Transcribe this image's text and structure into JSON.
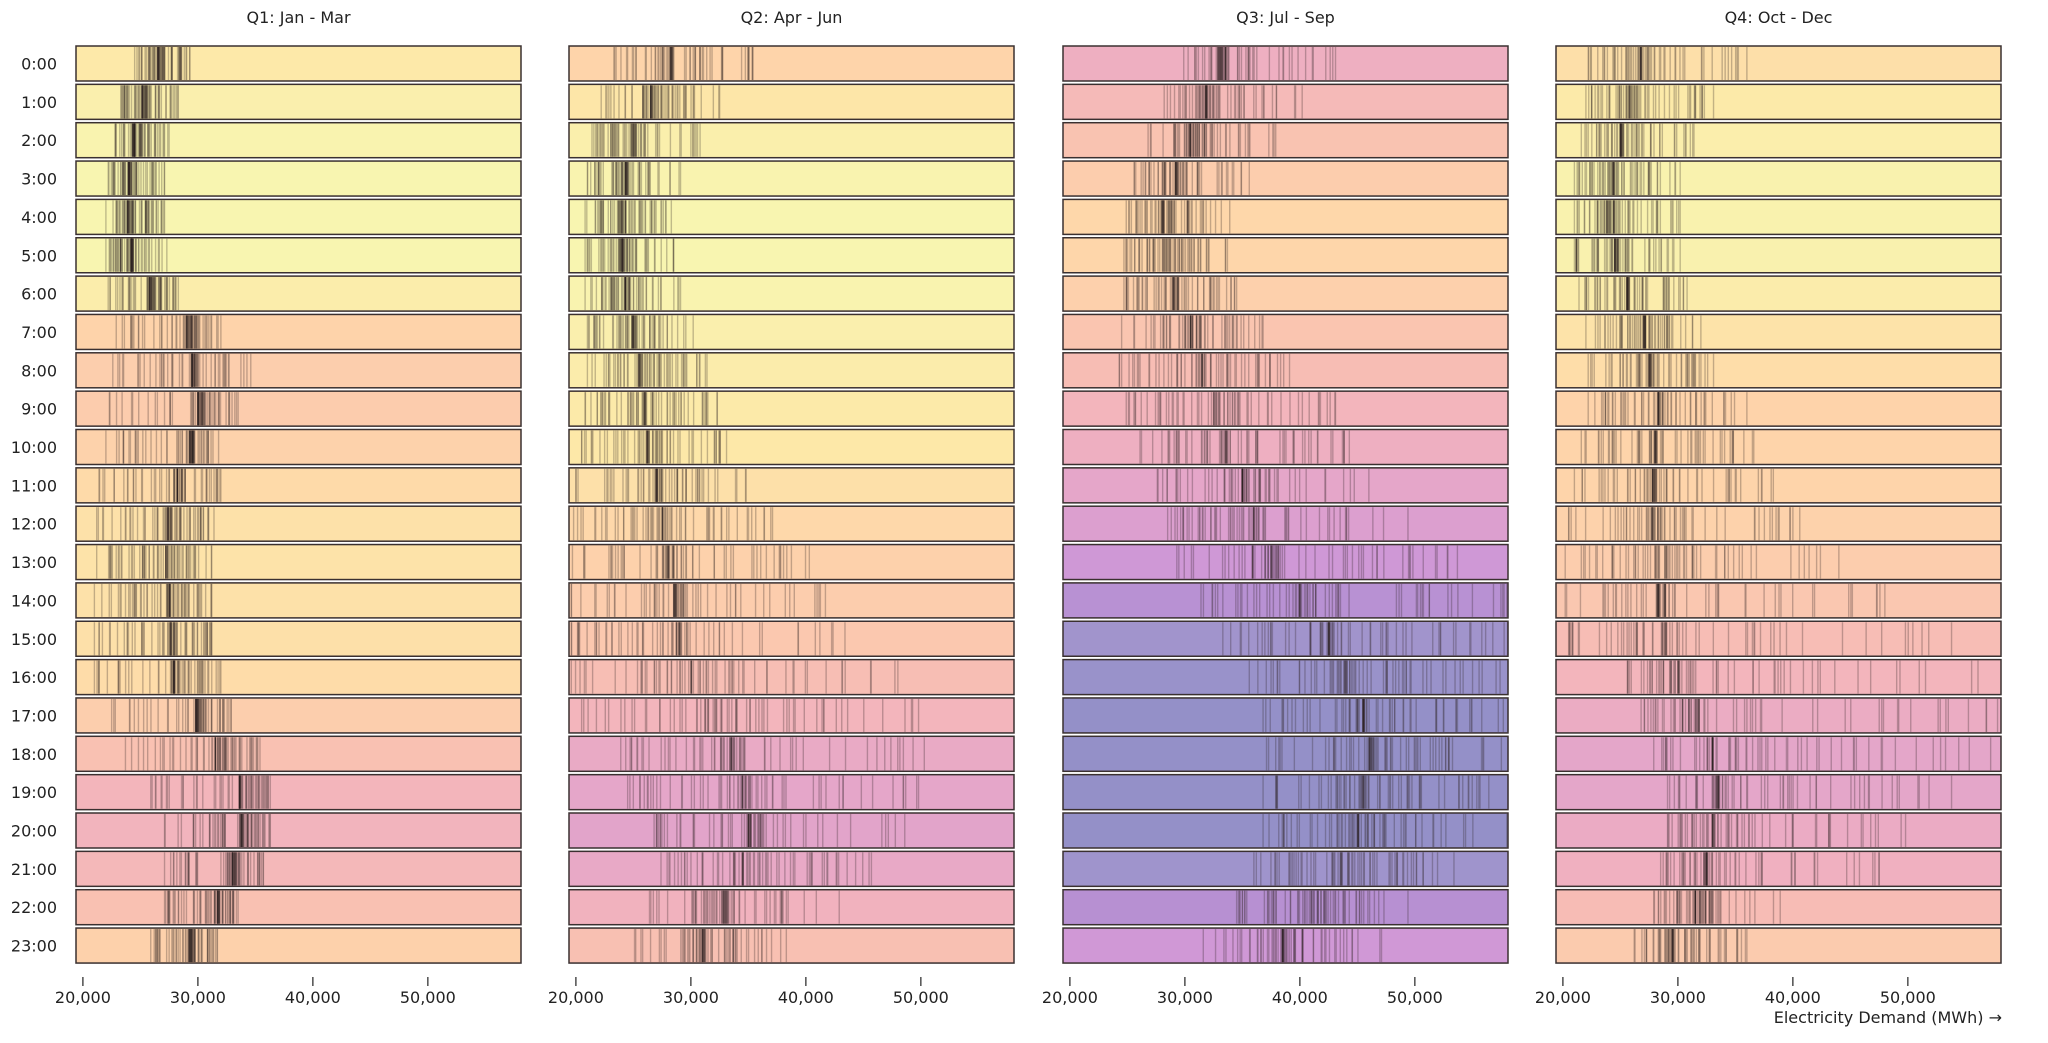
{
  "chart_data": {
    "type": "barcode-facets",
    "facets": [
      "Q1: Jan - Mar",
      "Q2: Apr - Jun",
      "Q3: Jul - Sep",
      "Q4: Oct - Dec"
    ],
    "rows": [
      "0:00",
      "1:00",
      "2:00",
      "3:00",
      "4:00",
      "5:00",
      "6:00",
      "7:00",
      "8:00",
      "9:00",
      "10:00",
      "11:00",
      "12:00",
      "13:00",
      "14:00",
      "15:00",
      "16:00",
      "17:00",
      "18:00",
      "19:00",
      "20:00",
      "21:00",
      "22:00",
      "23:00"
    ],
    "xlabel": "Electricity Demand (MWh) →",
    "xlim": [
      19400,
      58100
    ],
    "xticks": [
      20000,
      30000,
      40000,
      50000
    ],
    "xtick_labels": [
      "20,000",
      "30,000",
      "40,000",
      "50,000"
    ],
    "cell_value_fields": [
      "min",
      "typical",
      "max"
    ],
    "color_scale": [
      [
        24500,
        "#f8f5b0"
      ],
      [
        27000,
        "#fde8a8"
      ],
      [
        29000,
        "#fed4aa"
      ],
      [
        32000,
        "#f8bfb3"
      ],
      [
        34500,
        "#f0b0c0"
      ],
      [
        37000,
        "#e0a2cc"
      ],
      [
        40000,
        "#cc96d8"
      ],
      [
        42500,
        "#b690d2"
      ],
      [
        44500,
        "#a094cc"
      ],
      [
        46500,
        "#9490c8"
      ]
    ],
    "cells": [
      [
        [
          24500,
          26500,
          29300
        ],
        [
          23300,
          25200,
          28300
        ],
        [
          22800,
          24500,
          27500
        ],
        [
          22200,
          24000,
          27100
        ],
        [
          22000,
          23900,
          27100
        ],
        [
          22000,
          24200,
          27300
        ],
        [
          22200,
          25800,
          28300
        ],
        [
          22900,
          29000,
          32000
        ],
        [
          22600,
          29500,
          34600
        ],
        [
          22300,
          30000,
          33500
        ],
        [
          22000,
          29300,
          31800
        ],
        [
          21400,
          28200,
          32000
        ],
        [
          21200,
          27400,
          31400
        ],
        [
          21200,
          27200,
          31200
        ],
        [
          21000,
          27500,
          31200
        ],
        [
          21000,
          27600,
          31200
        ],
        [
          21000,
          27900,
          32000
        ],
        [
          22500,
          29800,
          32900
        ],
        [
          23700,
          31500,
          35400
        ],
        [
          25900,
          33600,
          36300
        ],
        [
          27100,
          33800,
          36300
        ],
        [
          27100,
          33000,
          35700
        ],
        [
          27100,
          31700,
          33500
        ],
        [
          25900,
          29300,
          31700
        ]
      ],
      [
        [
          23300,
          28200,
          35400
        ],
        [
          22200,
          26500,
          32500
        ],
        [
          21400,
          25000,
          30800
        ],
        [
          21000,
          24300,
          29100
        ],
        [
          20800,
          24000,
          28300
        ],
        [
          20800,
          24000,
          28500
        ],
        [
          20800,
          24300,
          29100
        ],
        [
          21000,
          25000,
          30200
        ],
        [
          21000,
          25500,
          31400
        ],
        [
          20800,
          26000,
          32300
        ],
        [
          20500,
          26200,
          33100
        ],
        [
          20000,
          27000,
          34800
        ],
        [
          19800,
          27500,
          37100
        ],
        [
          19700,
          28000,
          40300
        ],
        [
          19600,
          28500,
          41700
        ],
        [
          19600,
          29000,
          43400
        ],
        [
          19600,
          30000,
          48000
        ],
        [
          20500,
          31500,
          49800
        ],
        [
          23900,
          33500,
          50300
        ],
        [
          24500,
          34500,
          49800
        ],
        [
          26800,
          35000,
          48600
        ],
        [
          27400,
          34500,
          45700
        ],
        [
          26400,
          33000,
          42900
        ],
        [
          25100,
          31000,
          38300
        ]
      ],
      [
        [
          29900,
          33500,
          43100
        ],
        [
          28200,
          31800,
          40200
        ],
        [
          26800,
          30500,
          37900
        ],
        [
          25600,
          29200,
          35600
        ],
        [
          24900,
          28000,
          33900
        ],
        [
          24700,
          28200,
          33700
        ],
        [
          24700,
          29000,
          34500
        ],
        [
          24500,
          30500,
          36800
        ],
        [
          24300,
          31500,
          39100
        ],
        [
          24900,
          32500,
          43100
        ],
        [
          26100,
          33500,
          44300
        ],
        [
          27600,
          35000,
          46000
        ],
        [
          28500,
          36000,
          49400
        ],
        [
          29300,
          37500,
          53700
        ],
        [
          31400,
          40000,
          58000
        ],
        [
          33300,
          42500,
          58100
        ],
        [
          35600,
          44000,
          58100
        ],
        [
          36800,
          45500,
          58100
        ],
        [
          37100,
          46000,
          58100
        ],
        [
          36800,
          45500,
          58100
        ],
        [
          36800,
          45000,
          58000
        ],
        [
          36000,
          43500,
          53400
        ],
        [
          34500,
          41500,
          49400
        ],
        [
          31600,
          38500,
          47100
        ]
      ],
      [
        [
          22200,
          26800,
          36000
        ],
        [
          22000,
          25800,
          33100
        ],
        [
          21600,
          25000,
          31400
        ],
        [
          21000,
          24400,
          30200
        ],
        [
          21000,
          24400,
          30200
        ],
        [
          21000,
          24500,
          30200
        ],
        [
          21400,
          25600,
          30800
        ],
        [
          22000,
          27000,
          32000
        ],
        [
          22200,
          27500,
          33100
        ],
        [
          22200,
          28300,
          36000
        ],
        [
          21600,
          28000,
          36600
        ],
        [
          21000,
          27800,
          38300
        ],
        [
          20500,
          27800,
          40600
        ],
        [
          20200,
          28000,
          44000
        ],
        [
          20200,
          28300,
          48000
        ],
        [
          20500,
          29000,
          53800
        ],
        [
          25600,
          30000,
          56100
        ],
        [
          26800,
          31500,
          57800
        ],
        [
          27900,
          33000,
          57200
        ],
        [
          29100,
          33500,
          53800
        ],
        [
          29100,
          33000,
          49800
        ],
        [
          28500,
          32500,
          47500
        ],
        [
          27900,
          31500,
          38900
        ],
        [
          26200,
          29500,
          36000
        ]
      ]
    ]
  }
}
